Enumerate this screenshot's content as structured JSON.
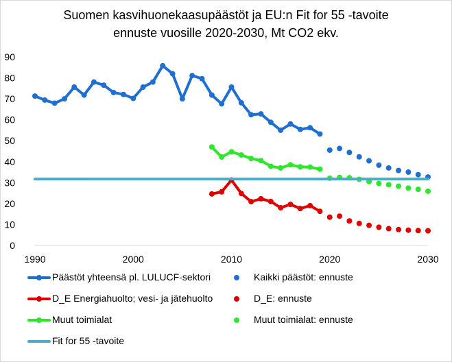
{
  "chart_data": {
    "type": "line",
    "title_line1": "Suomen kasvihuonekaasupäästöt ja EU:n Fit for 55 -tavoite",
    "title_line2": "ennuste vuosille 2020-2030, Mt CO2 ekv.",
    "xlim": [
      1990,
      2030
    ],
    "ylim": [
      0,
      90
    ],
    "x_ticks": [
      "1990",
      "2000",
      "2010",
      "2020",
      "2030"
    ],
    "y_ticks": [
      "0",
      "10",
      "20",
      "30",
      "40",
      "50",
      "60",
      "70",
      "80",
      "90"
    ],
    "series": [
      {
        "name": "Päästöt yhteensä pl. LULUCF-sektori",
        "style": "line-markers",
        "color": "#1F6FD0",
        "x": [
          1990,
          1991,
          1992,
          1993,
          1994,
          1995,
          1996,
          1997,
          1998,
          1999,
          2000,
          2001,
          2002,
          2003,
          2004,
          2005,
          2006,
          2007,
          2008,
          2009,
          2010,
          2011,
          2012,
          2013,
          2014,
          2015,
          2016,
          2017,
          2018,
          2019
        ],
        "values": [
          71.3,
          69.4,
          67.9,
          70.0,
          75.6,
          71.8,
          78.0,
          76.5,
          73.0,
          72.1,
          70.2,
          75.6,
          78.0,
          85.8,
          82.0,
          70.0,
          81.1,
          79.6,
          71.8,
          67.6,
          75.6,
          68.1,
          62.4,
          62.8,
          58.8,
          55.0,
          58.0,
          55.4,
          56.2,
          53.2
        ]
      },
      {
        "name": "Kaikki päästöt: ennuste",
        "style": "dots",
        "color": "#1F6FD0",
        "x": [
          2020,
          2021,
          2022,
          2023,
          2024,
          2025,
          2026,
          2027,
          2028,
          2029,
          2030
        ],
        "values": [
          45.5,
          46.3,
          44.4,
          42.3,
          40.4,
          38.3,
          37.0,
          35.8,
          35.0,
          33.8,
          32.7
        ]
      },
      {
        "name": "D_E Energiahuolto; vesi- ja jätehuolto",
        "style": "line-markers",
        "color": "#E00000",
        "x": [
          2008,
          2009,
          2010,
          2011,
          2012,
          2013,
          2014,
          2015,
          2016,
          2017,
          2018,
          2019
        ],
        "values": [
          24.6,
          25.6,
          31.2,
          24.8,
          20.9,
          22.3,
          21.0,
          18.0,
          19.6,
          17.6,
          19.0,
          16.3
        ]
      },
      {
        "name": "D_E: ennuste",
        "style": "dots",
        "color": "#E00000",
        "x": [
          2020,
          2021,
          2022,
          2023,
          2024,
          2025,
          2026,
          2027,
          2028,
          2029,
          2030
        ],
        "values": [
          13.5,
          14.0,
          11.7,
          10.5,
          9.6,
          8.7,
          8.0,
          7.6,
          7.3,
          7.1,
          7.0
        ]
      },
      {
        "name": "Muut toimialat",
        "style": "line-markers",
        "color": "#2EE62E",
        "x": [
          2008,
          2009,
          2010,
          2011,
          2012,
          2013,
          2014,
          2015,
          2016,
          2017,
          2018,
          2019
        ],
        "values": [
          47.0,
          42.2,
          44.7,
          43.2,
          41.5,
          40.5,
          37.8,
          37.0,
          38.5,
          37.5,
          37.4,
          36.4
        ]
      },
      {
        "name": "Muut toimialat: ennuste",
        "style": "dots",
        "color": "#2EE62E",
        "x": [
          2020,
          2021,
          2022,
          2023,
          2024,
          2025,
          2026,
          2027,
          2028,
          2029,
          2030
        ],
        "values": [
          32.1,
          32.5,
          32.3,
          31.6,
          30.5,
          29.6,
          29.0,
          28.3,
          27.4,
          26.8,
          25.9
        ]
      },
      {
        "name": "Fit for 55 -tavoite",
        "style": "line",
        "color": "#4BACC6",
        "x": [
          1990,
          2030
        ],
        "values": [
          31.7,
          31.7
        ]
      }
    ],
    "legend": {
      "placement": "bottom",
      "items": [
        {
          "label": "Päästöt yhteensä pl. LULUCF-sektori",
          "series": 0,
          "kind": "line-markers"
        },
        {
          "label": "Kaikki päästöt: ennuste",
          "series": 1,
          "kind": "dots"
        },
        {
          "label": "D_E Energiahuolto; vesi- ja jätehuolto",
          "series": 2,
          "kind": "line-markers"
        },
        {
          "label": "D_E: ennuste",
          "series": 3,
          "kind": "dots"
        },
        {
          "label": "Muut toimialat",
          "series": 4,
          "kind": "line-markers"
        },
        {
          "label": "Muut toimialat: ennuste",
          "series": 5,
          "kind": "dots"
        },
        {
          "label": "Fit for 55 -tavoite",
          "series": 6,
          "kind": "line"
        }
      ]
    },
    "grid": false
  }
}
